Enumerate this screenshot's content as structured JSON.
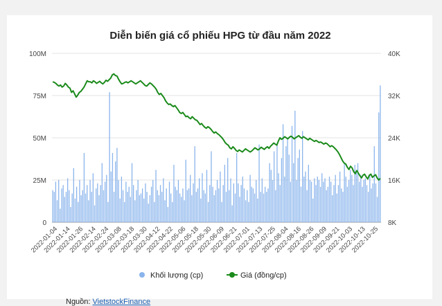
{
  "chart_data": {
    "type": "bar+line",
    "title": "Diễn biến giá cổ phiếu HPG từ đầu năm 2022",
    "left_axis": {
      "min": 0,
      "max": 100000000,
      "ticks": [
        "0",
        "25M",
        "50M",
        "75M",
        "100M"
      ]
    },
    "right_axis": {
      "min": 8000,
      "max": 40000,
      "ticks": [
        "8K",
        "16K",
        "24K",
        "32K",
        "40K"
      ]
    },
    "x_tick_labels": [
      "2022-01-04",
      "2022-01-14",
      "2022-01-26",
      "2022-02-14",
      "2022-02-24",
      "2022-03-08",
      "2022-03-18",
      "2022-03-30",
      "2022-04-12",
      "2022-04-22",
      "2022-05-06",
      "2022-05-18",
      "2022-05-30",
      "2022-06-09",
      "2022-06-21",
      "2022-07-01",
      "2022-07-13",
      "2022-07-25",
      "2022-08-04",
      "2022-08-16",
      "2022-08-26",
      "2022-09-09",
      "2022-09-21",
      "2022-10-03",
      "2022-10-13",
      "2022-10-25"
    ],
    "series": [
      {
        "name": "Khối lượng (cp)",
        "type": "bar",
        "axis": "left",
        "color": "#8ab4ec",
        "values": [
          19,
          18,
          24,
          13,
          25,
          8,
          20,
          22,
          15,
          18,
          26,
          19,
          9,
          17,
          32,
          14,
          21,
          12,
          25,
          16,
          19,
          41,
          17,
          22,
          13,
          25,
          18,
          29,
          10,
          20,
          23,
          16,
          22,
          35,
          19,
          24,
          28,
          12,
          77,
          30,
          41,
          18,
          36,
          44,
          25,
          14,
          27,
          19,
          12,
          24,
          18,
          21,
          15,
          35,
          22,
          13,
          19,
          25,
          16,
          17,
          20,
          14,
          23,
          18,
          11,
          16,
          21,
          25,
          12,
          31,
          19,
          16,
          22,
          18,
          26,
          13,
          20,
          9,
          24,
          17,
          12,
          34,
          21,
          19,
          25,
          17,
          15,
          20,
          13,
          37,
          19,
          20,
          28,
          16,
          23,
          45,
          18,
          20,
          26,
          14,
          29,
          19,
          17,
          31,
          12,
          22,
          42,
          21,
          16,
          19,
          25,
          20,
          30,
          12,
          22,
          34,
          18,
          38,
          19,
          26,
          10,
          23,
          17,
          41,
          23,
          15,
          22,
          27,
          20,
          13,
          19,
          12,
          28,
          21,
          20,
          17,
          25,
          14,
          46,
          18,
          26,
          17,
          21,
          18,
          20,
          35,
          31,
          25,
          42,
          19,
          47,
          29,
          22,
          38,
          58,
          27,
          45,
          50,
          40,
          24,
          57,
          35,
          66,
          25,
          38,
          43,
          21,
          54,
          27,
          30,
          19,
          34,
          25,
          24,
          14,
          26,
          22,
          27,
          25,
          21,
          29,
          24,
          26,
          19,
          21,
          27,
          24,
          16,
          22,
          28,
          17,
          22,
          30,
          20,
          18,
          35,
          27,
          21,
          25,
          31,
          28,
          22,
          34,
          30,
          35,
          24,
          28,
          21,
          25,
          26,
          22,
          18,
          28,
          20,
          23,
          45,
          23,
          15,
          65,
          81
        ]
      },
      {
        "name": "Giá (đồng/cp)",
        "type": "line",
        "axis": "right",
        "color": "#1a8a1a",
        "values": [
          34.6,
          34.5,
          34.3,
          34.0,
          33.8,
          34.0,
          33.6,
          33.8,
          34.3,
          34.0,
          33.6,
          33.4,
          32.6,
          32.9,
          32.3,
          31.7,
          32.1,
          32.6,
          32.8,
          33.2,
          33.6,
          34.2,
          34.8,
          34.6,
          34.6,
          34.4,
          34.8,
          34.6,
          34.3,
          34.5,
          34.7,
          34.4,
          34.2,
          34.5,
          34.9,
          34.7,
          35.0,
          35.3,
          35.9,
          36.1,
          35.8,
          35.7,
          35.1,
          34.6,
          34.2,
          34.3,
          34.5,
          34.6,
          34.4,
          34.6,
          34.8,
          34.6,
          34.4,
          34.2,
          34.4,
          34.6,
          34.8,
          34.5,
          34.2,
          33.9,
          33.8,
          34.1,
          34.4,
          34.2,
          33.9,
          33.6,
          33.2,
          32.6,
          32.2,
          32.4,
          32.0,
          31.6,
          31.0,
          30.6,
          30.3,
          30.4,
          30.1,
          29.9,
          30.1,
          29.7,
          29.3,
          28.8,
          28.6,
          28.8,
          28.4,
          28.0,
          28.1,
          27.8,
          27.6,
          28.0,
          27.7,
          27.4,
          27.3,
          26.9,
          26.5,
          26.7,
          26.3,
          26.0,
          25.8,
          26.1,
          25.9,
          25.6,
          25.2,
          24.9,
          25.1,
          24.8,
          24.6,
          24.3,
          24.0,
          23.6,
          23.1,
          22.8,
          22.6,
          22.1,
          21.9,
          22.3,
          22.0,
          21.6,
          21.4,
          21.7,
          21.5,
          21.3,
          21.6,
          21.9,
          21.7,
          21.5,
          21.3,
          21.5,
          21.8,
          22.1,
          21.9,
          21.7,
          21.9,
          22.2,
          22.0,
          21.8,
          22.1,
          22.3,
          22.0,
          22.4,
          22.7,
          23.0,
          22.8,
          22.6,
          23.4,
          24.0,
          23.7,
          23.9,
          24.2,
          24.0,
          23.8,
          24.1,
          24.3,
          24.1,
          23.8,
          24.0,
          24.2,
          24.4,
          24.1,
          23.9,
          24.2,
          24.0,
          23.8,
          23.6,
          23.9,
          23.7,
          23.5,
          23.3,
          23.5,
          23.3,
          23.1,
          23.2,
          23.0,
          22.8,
          23.0,
          22.9,
          22.6,
          22.3,
          22.5,
          22.3,
          22.0,
          21.7,
          21.3,
          20.8,
          20.2,
          19.6,
          19.2,
          19.0,
          18.4,
          18.0,
          18.6,
          18.3,
          17.6,
          17.2,
          17.8,
          17.3,
          16.8,
          16.4,
          16.9,
          17.1,
          16.6,
          16.2,
          16.9,
          17.1,
          16.5,
          16.8,
          17.0,
          16.4,
          16.0,
          16.3
        ]
      }
    ],
    "legend": [
      {
        "label": "Khối lượng (cp)",
        "color": "#8ab4ec",
        "marker": "dot"
      },
      {
        "label": "Giá (đồng/cp)",
        "color": "#1a8a1a",
        "marker": "line-dot"
      }
    ],
    "legend_position": "bottom",
    "grid": true
  },
  "source": {
    "label": "Nguồn:",
    "link_text": "VietstockFinance"
  }
}
